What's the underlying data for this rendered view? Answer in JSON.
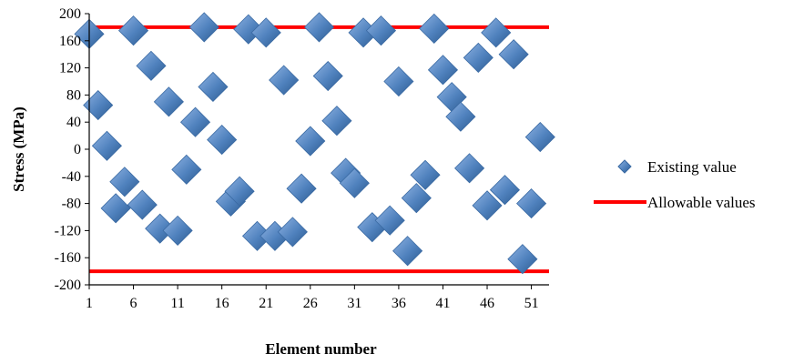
{
  "chart_data": {
    "type": "scatter",
    "xlabel": "Element number",
    "ylabel": "Stress (MPa)",
    "xlim": [
      1,
      53
    ],
    "ylim": [
      -200,
      200
    ],
    "x_ticks": [
      1,
      6,
      11,
      16,
      21,
      26,
      31,
      36,
      41,
      46,
      51
    ],
    "y_ticks": [
      200,
      160,
      120,
      80,
      40,
      0,
      -40,
      -80,
      -120,
      -160,
      -200
    ],
    "grid": false,
    "legend_position": "right",
    "series": [
      {
        "name": "Existing value",
        "kind": "scatter",
        "marker": "diamond",
        "color": "#4f81bd",
        "x": [
          1,
          2,
          3,
          4,
          5,
          6,
          7,
          8,
          9,
          10,
          11,
          12,
          13,
          14,
          15,
          16,
          17,
          18,
          19,
          20,
          21,
          22,
          23,
          24,
          25,
          26,
          27,
          28,
          29,
          30,
          31,
          32,
          33,
          34,
          35,
          36,
          37,
          38,
          39,
          40,
          41,
          42,
          43,
          44,
          45,
          46,
          47,
          48,
          49,
          50,
          51,
          52
        ],
        "y": [
          170,
          65,
          5,
          -87,
          -48,
          175,
          -82,
          123,
          -117,
          70,
          -120,
          -30,
          40,
          180,
          92,
          14,
          -77,
          -62,
          177,
          -128,
          172,
          -128,
          102,
          -122,
          -58,
          12,
          180,
          108,
          42,
          -35,
          -50,
          172,
          -115,
          175,
          -105,
          100,
          -150,
          -72,
          -38,
          178,
          117,
          77,
          48,
          -28,
          135,
          -83,
          172,
          -60,
          140,
          -162,
          -80,
          18
        ]
      },
      {
        "name": "Allowable values",
        "kind": "line",
        "color": "#ff0000",
        "lines": [
          {
            "y": 180,
            "x_start": 1,
            "x_end": 53
          },
          {
            "y": -180,
            "x_start": 1,
            "x_end": 53
          }
        ]
      }
    ]
  }
}
